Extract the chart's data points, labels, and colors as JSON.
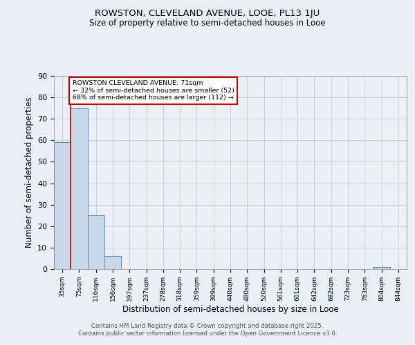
{
  "title1": "ROWSTON, CLEVELAND AVENUE, LOOE, PL13 1JU",
  "title2": "Size of property relative to semi-detached houses in Looe",
  "xlabel": "Distribution of semi-detached houses by size in Looe",
  "ylabel": "Number of semi-detached properties",
  "categories": [
    "35sqm",
    "75sqm",
    "116sqm",
    "156sqm",
    "197sqm",
    "237sqm",
    "278sqm",
    "318sqm",
    "359sqm",
    "399sqm",
    "440sqm",
    "480sqm",
    "520sqm",
    "561sqm",
    "601sqm",
    "642sqm",
    "682sqm",
    "723sqm",
    "763sqm",
    "804sqm",
    "844sqm"
  ],
  "values": [
    59,
    75,
    25,
    6,
    0,
    0,
    0,
    0,
    0,
    0,
    0,
    0,
    0,
    0,
    0,
    0,
    0,
    0,
    0,
    1,
    0
  ],
  "bar_color": "#c8d8e8",
  "bar_edge_color": "#5a8ab5",
  "property_label": "ROWSTON CLEVELAND AVENUE: 71sqm",
  "pct_smaller": 32,
  "n_smaller": 52,
  "pct_larger": 68,
  "n_larger": 112,
  "annotation_box_color": "#ffffff",
  "annotation_box_edge": "#cc0000",
  "red_line_color": "#cc0000",
  "ylim": [
    0,
    90
  ],
  "yticks": [
    0,
    10,
    20,
    30,
    40,
    50,
    60,
    70,
    80,
    90
  ],
  "grid_color": "#c0c0c0",
  "background_color": "#eaf0f8",
  "footer1": "Contains HM Land Registry data © Crown copyright and database right 2025.",
  "footer2": "Contains public sector information licensed under the Open Government Licence v3.0."
}
